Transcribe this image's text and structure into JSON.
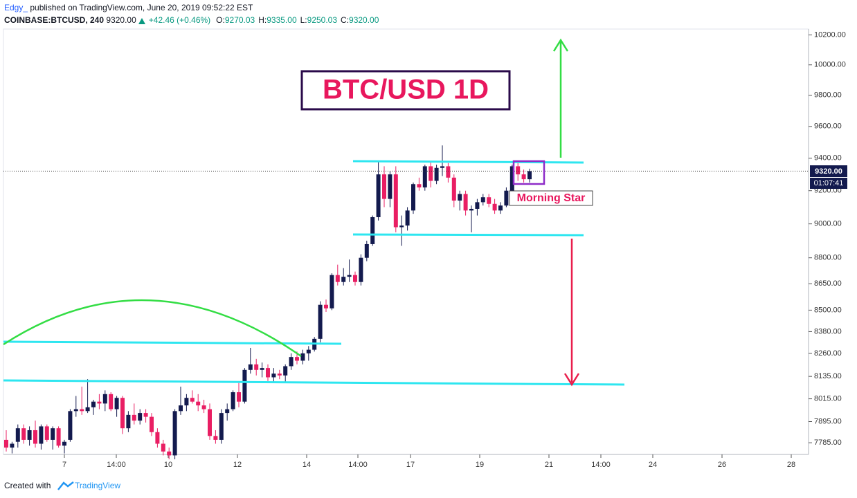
{
  "header": {
    "author": "Edgy_",
    "published": "published on TradingView.com, June 20, 2019 09:52:22 EST",
    "symbol": "COINBASE:BTCUSD, 240",
    "price": "9320.00",
    "change": "+42.46 (+0.46%)",
    "ohlc": [
      {
        "label": "O:",
        "value": "9270.03"
      },
      {
        "label": "H:",
        "value": "9335.00"
      },
      {
        "label": "L:",
        "value": "9250.03"
      },
      {
        "label": "C:",
        "value": "9320.00"
      }
    ],
    "countdown": "01:07:41"
  },
  "chart_data": {
    "type": "candlestick",
    "title": "BTC/USD 1D",
    "annotation": "Morning Star",
    "log_scale": true,
    "up_color": "#131a4e",
    "down_color": "#e91e63",
    "ylim": [
      7725,
      10240
    ],
    "yticks": [
      {
        "value": 7785,
        "label": "7785.00"
      },
      {
        "value": 7895,
        "label": "7895.00"
      },
      {
        "value": 8015,
        "label": "8015.00"
      },
      {
        "value": 8135,
        "label": "8135.00"
      },
      {
        "value": 8260,
        "label": "8260.00"
      },
      {
        "value": 8380,
        "label": "8380.00"
      },
      {
        "value": 8500,
        "label": "8500.00"
      },
      {
        "value": 8650,
        "label": "8650.00"
      },
      {
        "value": 8800,
        "label": "8800.00"
      },
      {
        "value": 9000,
        "label": "9000.00"
      },
      {
        "value": 9200,
        "label": "9200.00"
      },
      {
        "value": 9400,
        "label": "9400.00"
      },
      {
        "value": 9600,
        "label": "9600.00"
      },
      {
        "value": 9800,
        "label": "9800.00"
      },
      {
        "value": 10000,
        "label": "10000.00"
      },
      {
        "value": 10200,
        "label": "10200.00"
      }
    ],
    "xticks": [
      "7",
      "14:00",
      "10",
      "12",
      "14",
      "14:00",
      "17",
      "19",
      "21",
      "14:00",
      "24",
      "26",
      "28"
    ],
    "open": [
      7800,
      7760,
      7790,
      7860,
      7800,
      7850,
      7780,
      7870,
      7800,
      7860,
      7770,
      7800,
      7950,
      7960,
      7950,
      7970,
      8000,
      7990,
      8040,
      7960,
      8020,
      7860,
      7930,
      7900,
      7940,
      7920,
      7840,
      7780,
      7740,
      7720,
      7950,
      7980,
      8020,
      8000,
      7980,
      7960,
      7820,
      7800,
      7940,
      7960,
      8050,
      8000,
      8170,
      8200,
      8170,
      8180,
      8130,
      8150,
      8140,
      8190,
      8240,
      8220,
      8260,
      8280,
      8340,
      8530,
      8510,
      8700,
      8660,
      8690,
      8700,
      8660,
      8800,
      8880,
      9040,
      9300,
      9150,
      9300,
      8980,
      8990,
      9080,
      9240,
      9220,
      9350,
      9260,
      9340,
      9350,
      9280,
      9140,
      9180,
      9080,
      9090,
      9130,
      9160,
      9120,
      9080,
      9110,
      9200,
      9350,
      9300,
      9270
    ],
    "high": [
      7850,
      7790,
      7880,
      7880,
      7870,
      7900,
      7880,
      7880,
      7870,
      7870,
      7800,
      7960,
      8030,
      8080,
      8120,
      8010,
      8040,
      8060,
      8050,
      8030,
      8030,
      7950,
      7990,
      7960,
      7960,
      7940,
      7860,
      7800,
      7760,
      7960,
      8080,
      8040,
      8060,
      8040,
      8010,
      7990,
      7850,
      7960,
      7990,
      8060,
      8100,
      8180,
      8290,
      8230,
      8210,
      8200,
      8180,
      8170,
      8200,
      8260,
      8270,
      8280,
      8300,
      8350,
      8550,
      8560,
      8710,
      8760,
      8740,
      8790,
      8720,
      8820,
      8900,
      9050,
      9380,
      9350,
      9320,
      9350,
      9050,
      9100,
      9250,
      9280,
      9360,
      9380,
      9360,
      9480,
      9370,
      9300,
      9200,
      9200,
      9110,
      9150,
      9180,
      9180,
      9150,
      9130,
      9220,
      9360,
      9380,
      9330,
      9335
    ],
    "low": [
      7740,
      7730,
      7760,
      7780,
      7770,
      7760,
      7750,
      7790,
      7750,
      7760,
      7730,
      7790,
      7920,
      7930,
      7940,
      7930,
      7960,
      7950,
      7950,
      7920,
      7830,
      7840,
      7880,
      7880,
      7890,
      7820,
      7760,
      7720,
      7700,
      7700,
      7930,
      7950,
      7990,
      7950,
      7940,
      7800,
      7780,
      7780,
      7900,
      7950,
      7970,
      7990,
      8150,
      8140,
      8130,
      8110,
      8100,
      8120,
      8100,
      8170,
      8200,
      8200,
      8220,
      8270,
      8320,
      8490,
      8500,
      8640,
      8640,
      8660,
      8640,
      8640,
      8780,
      8870,
      9020,
      9100,
      9100,
      8950,
      8870,
      8960,
      9060,
      9200,
      9200,
      9220,
      9240,
      9290,
      9250,
      9100,
      9080,
      9050,
      8950,
      9050,
      9110,
      9100,
      9060,
      9060,
      9100,
      9180,
      9260,
      9250,
      9250
    ],
    "close": [
      7760,
      7780,
      7860,
      7800,
      7850,
      7780,
      7870,
      7800,
      7860,
      7770,
      7790,
      7950,
      7960,
      7950,
      7970,
      8000,
      7990,
      8040,
      7960,
      8020,
      7860,
      7930,
      7900,
      7940,
      7920,
      7840,
      7780,
      7740,
      7720,
      7950,
      7980,
      8020,
      8000,
      7980,
      7960,
      7820,
      7800,
      7940,
      7960,
      8050,
      8000,
      8170,
      8200,
      8170,
      8180,
      8130,
      8150,
      8140,
      8190,
      8240,
      8220,
      8260,
      8280,
      8340,
      8530,
      8510,
      8700,
      8660,
      8690,
      8700,
      8660,
      8800,
      8880,
      9040,
      9300,
      9150,
      9300,
      8980,
      8990,
      9080,
      9240,
      9220,
      9350,
      9260,
      9340,
      9350,
      9280,
      9140,
      9180,
      9080,
      9090,
      9130,
      9160,
      9120,
      9080,
      9110,
      9200,
      9350,
      9300,
      9270,
      9320
    ]
  },
  "footer": {
    "created": "Created with",
    "brand": "TradingView"
  }
}
